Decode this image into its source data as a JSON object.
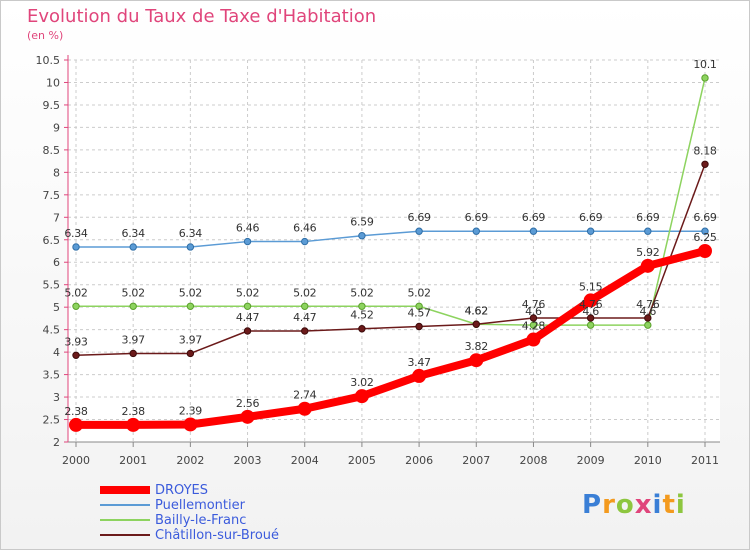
{
  "title": "Evolution du Taux de Taxe d'Habitation",
  "subtitle": "(en %)",
  "logo": {
    "text": "Proxiti",
    "letters": [
      {
        "char": "P",
        "color": "#3a7fd6"
      },
      {
        "char": "r",
        "color": "#f39a1e"
      },
      {
        "char": "o",
        "color": "#8dc63f"
      },
      {
        "char": "x",
        "color": "#e0457b"
      },
      {
        "char": "i",
        "color": "#3a7fd6"
      },
      {
        "char": "t",
        "color": "#f39a1e"
      },
      {
        "char": "i",
        "color": "#8dc63f"
      }
    ]
  },
  "chart_data": {
    "type": "line",
    "title": "Evolution du Taux de Taxe d'Habitation",
    "ylabel": "(en %)",
    "xlabel": "",
    "x": [
      "2000",
      "2001",
      "2002",
      "2003",
      "2004",
      "2005",
      "2006",
      "2007",
      "2008",
      "2009",
      "2010",
      "2011"
    ],
    "ylim": [
      2,
      10.5
    ],
    "yticks": [
      "2",
      "2.5",
      "3",
      "3.5",
      "4",
      "4.5",
      "5",
      "5.5",
      "6",
      "6.5",
      "7",
      "7.5",
      "8",
      "8.5",
      "9",
      "9.5",
      "10",
      "10.5"
    ],
    "grid": true,
    "legend_position": "bottom-left",
    "series": [
      {
        "name": "DROYES",
        "color": "#ff0000",
        "values": [
          2.38,
          2.38,
          2.39,
          2.56,
          2.74,
          3.02,
          3.47,
          3.82,
          4.28,
          5.15,
          5.92,
          6.25
        ],
        "labels": [
          "2.38",
          "2.38",
          "2.39",
          "2.56",
          "2.74",
          "3.02",
          "3.47",
          "3.82",
          "4.28",
          "5.15",
          "5.92",
          "6.25"
        ]
      },
      {
        "name": "Puellemontier",
        "color": "#5b9bd5",
        "values": [
          6.34,
          6.34,
          6.34,
          6.46,
          6.46,
          6.59,
          6.69,
          6.69,
          6.69,
          6.69,
          6.69,
          6.69
        ],
        "labels": [
          "6.34",
          "6.34",
          "6.34",
          "6.46",
          "6.46",
          "6.59",
          "6.69",
          "6.69",
          "6.69",
          "6.69",
          "6.69",
          "6.69"
        ]
      },
      {
        "name": "Bailly-le-Franc",
        "color": "#8dd35f",
        "values": [
          5.02,
          5.02,
          5.02,
          5.02,
          5.02,
          5.02,
          5.02,
          4.62,
          4.6,
          4.6,
          4.6,
          10.1
        ],
        "labels": [
          "5.02",
          "5.02",
          "5.02",
          "5.02",
          "5.02",
          "5.02",
          "5.02",
          "4.62",
          "4.6",
          "4.6",
          "4.6",
          "10.1"
        ]
      },
      {
        "name": "Châtillon-sur-Broué",
        "color": "#6b1a1a",
        "values": [
          3.93,
          3.97,
          3.97,
          4.47,
          4.47,
          4.52,
          4.57,
          4.62,
          4.76,
          4.76,
          4.76,
          8.18
        ],
        "labels": [
          "3.93",
          "3.97",
          "3.97",
          "4.47",
          "4.47",
          "4.52",
          "4.57",
          "4.62",
          "4.76",
          "4.76",
          "4.76",
          "8.18"
        ]
      }
    ]
  }
}
